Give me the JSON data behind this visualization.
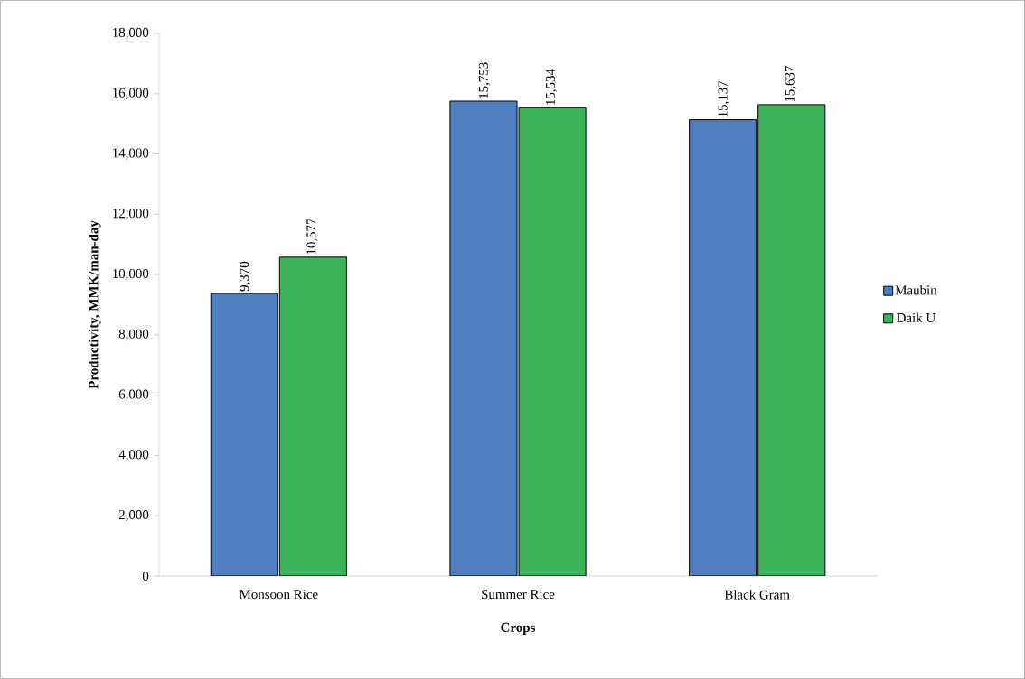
{
  "chart_data": {
    "type": "bar",
    "xlabel": "Crops",
    "ylabel": "Productivity, MMK/man-day",
    "categories": [
      "Monsoon Rice",
      "Summer Rice",
      "Black Gram"
    ],
    "series": [
      {
        "name": "Maubin",
        "color": "#4f7fc0",
        "values": [
          9370,
          15753,
          15137
        ],
        "value_labels": [
          "9,370",
          "15,753",
          "15,137"
        ]
      },
      {
        "name": "Daik U",
        "color": "#3cb35a",
        "values": [
          10577,
          15534,
          15637
        ],
        "value_labels": [
          "10,577",
          "15,534",
          "15,637"
        ]
      }
    ],
    "ylim": [
      0,
      18000
    ],
    "yticks": [
      0,
      {
        "value": 2000,
        "label": "2,000"
      },
      {
        "value": 4000,
        "label": "4,000"
      },
      {
        "value": 6000,
        "label": "6,000"
      },
      {
        "value": 8000,
        "label": "8,000"
      },
      {
        "value": 10000,
        "label": "10,000"
      },
      {
        "value": 12000,
        "label": "12,000"
      },
      {
        "value": 14000,
        "label": "14,000"
      },
      {
        "value": 16000,
        "label": "16,000"
      },
      {
        "value": 18000,
        "label": "18,000"
      }
    ],
    "grid": false,
    "legend": "right"
  }
}
